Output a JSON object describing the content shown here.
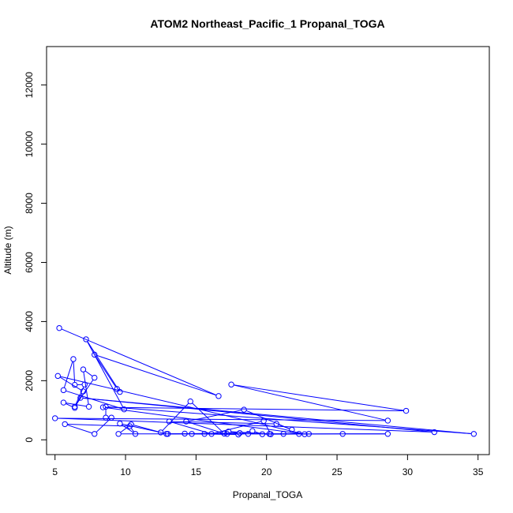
{
  "chart_data": {
    "type": "line",
    "title": "ATOM2 Northeast_Pacific_1 Propanal_TOGA",
    "xlabel": "Propanal_TOGA",
    "ylabel": "Altitude (m)",
    "xlim": [
      4.4,
      35.8
    ],
    "ylim": [
      -500,
      13300
    ],
    "xticks": [
      5,
      10,
      15,
      20,
      25,
      30,
      35
    ],
    "yticks": [
      0,
      2000,
      4000,
      6000,
      8000,
      10000,
      12000
    ],
    "series_color": "#0000ff",
    "grid": false,
    "legend": "none",
    "series": [
      {
        "marker": "open-circle",
        "line": true,
        "points": [
          [
            5.3,
            3780
          ],
          [
            16.6,
            1480
          ],
          [
            7.8,
            2880
          ],
          [
            9.4,
            1720
          ],
          [
            9.6,
            1620
          ],
          [
            7.2,
            3400
          ],
          [
            9.9,
            1030
          ],
          [
            5.6,
            1680
          ],
          [
            6.3,
            2730
          ],
          [
            6.4,
            1860
          ],
          [
            7.1,
            1870
          ],
          [
            6.4,
            1120
          ],
          [
            7.8,
            2100
          ],
          [
            7.0,
            2380
          ],
          [
            7.4,
            1120
          ],
          [
            5.6,
            1260
          ],
          [
            6.4,
            1080
          ],
          [
            7.0,
            1640
          ],
          [
            5.2,
            2160
          ],
          [
            22.7,
            190
          ],
          [
            8.4,
            1100
          ],
          [
            29.9,
            980
          ],
          [
            17.5,
            1870
          ],
          [
            28.6,
            650
          ],
          [
            5.0,
            730
          ],
          [
            31.9,
            260
          ],
          [
            6.8,
            1420
          ],
          [
            34.7,
            200
          ],
          [
            8.6,
            1120
          ],
          [
            8.6,
            750
          ],
          [
            9.0,
            750
          ],
          [
            7.8,
            200
          ],
          [
            5.7,
            530
          ],
          [
            10.3,
            460
          ],
          [
            10.7,
            200
          ],
          [
            9.6,
            550
          ],
          [
            12.5,
            250
          ],
          [
            14.6,
            1300
          ],
          [
            17.0,
            210
          ],
          [
            14.3,
            620
          ],
          [
            18.4,
            1020
          ],
          [
            21.8,
            340
          ],
          [
            20.7,
            540
          ],
          [
            13.1,
            620
          ],
          [
            16.1,
            200
          ],
          [
            19.8,
            640
          ],
          [
            20.3,
            190
          ],
          [
            25.4,
            200
          ],
          [
            28.6,
            200
          ],
          [
            12.9,
            200
          ],
          [
            10.4,
            520
          ],
          [
            9.5,
            200
          ],
          [
            14.7,
            200
          ],
          [
            18.0,
            180
          ],
          [
            19.0,
            300
          ],
          [
            19.7,
            190
          ],
          [
            21.2,
            200
          ],
          [
            22.3,
            200
          ],
          [
            18.7,
            200
          ],
          [
            17.2,
            200
          ],
          [
            15.6,
            200
          ],
          [
            14.2,
            210
          ],
          [
            13.0,
            200
          ],
          [
            18.1,
            230
          ],
          [
            17.3,
            280
          ],
          [
            20.2,
            200
          ],
          [
            23.0,
            200
          ]
        ]
      }
    ]
  }
}
